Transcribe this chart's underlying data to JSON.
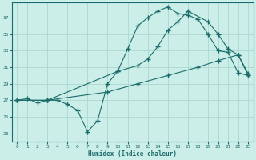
{
  "xlabel": "Humidex (Indice chaleur)",
  "bg_color": "#cceee8",
  "grid_color": "#aad8d0",
  "line_color": "#1a6b6b",
  "xlim": [
    -0.5,
    23.5
  ],
  "ylim": [
    22.0,
    38.8
  ],
  "yticks": [
    23,
    25,
    27,
    29,
    31,
    33,
    35,
    37
  ],
  "xticks": [
    0,
    1,
    2,
    3,
    4,
    5,
    6,
    7,
    8,
    9,
    10,
    11,
    12,
    13,
    14,
    15,
    16,
    17,
    18,
    19,
    20,
    21,
    22,
    23
  ],
  "line1_x": [
    0,
    1,
    2,
    3,
    4,
    5,
    6,
    7,
    8,
    9,
    10,
    11,
    12,
    13,
    14,
    15,
    16,
    17,
    18,
    19,
    20,
    21,
    22,
    23
  ],
  "line1_y": [
    27.0,
    27.2,
    26.7,
    27.0,
    27.0,
    26.5,
    25.8,
    23.2,
    24.5,
    29.0,
    30.5,
    33.2,
    36.0,
    37.0,
    37.8,
    38.3,
    37.5,
    37.3,
    36.8,
    35.0,
    33.0,
    32.8,
    30.3,
    30.0
  ],
  "line2_x": [
    0,
    3,
    10,
    12,
    13,
    14,
    15,
    16,
    17,
    19,
    20,
    21,
    22,
    23
  ],
  "line2_y": [
    27.0,
    27.0,
    30.5,
    31.2,
    32.0,
    33.5,
    35.5,
    36.5,
    37.8,
    36.5,
    35.0,
    33.2,
    32.5,
    30.0
  ],
  "line3_x": [
    0,
    3,
    9,
    12,
    15,
    18,
    20,
    22,
    23
  ],
  "line3_y": [
    27.0,
    27.0,
    28.0,
    29.0,
    30.0,
    31.0,
    31.8,
    32.5,
    30.2
  ]
}
